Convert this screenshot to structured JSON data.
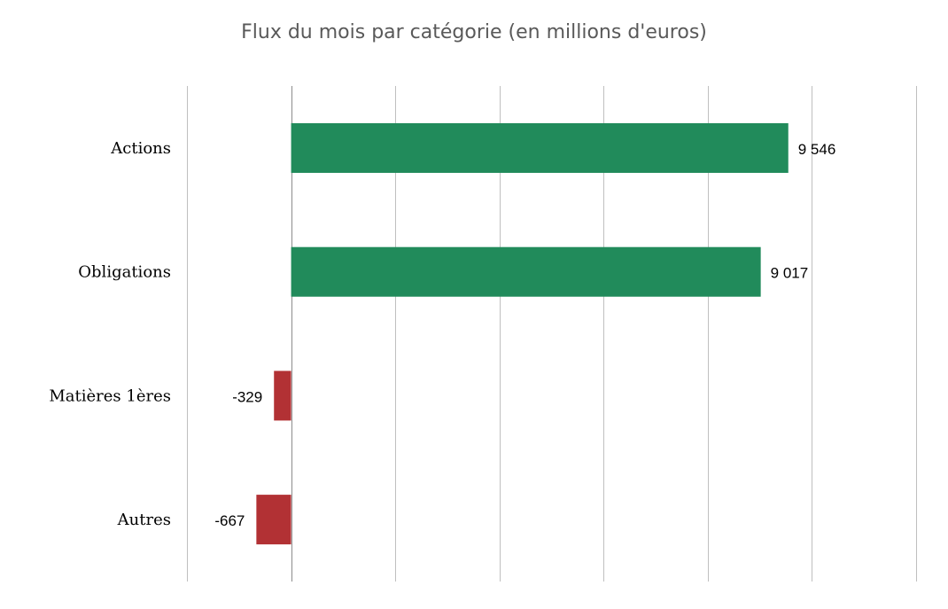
{
  "chart_data": {
    "type": "bar",
    "orientation": "horizontal",
    "title": "Flux du mois par catégorie (en millions d'euros)",
    "categories": [
      "Actions",
      "Obligations",
      "Matières 1ères",
      "Autres"
    ],
    "values": [
      9546,
      9017,
      -329,
      -667
    ],
    "value_labels": [
      "9 546",
      "9 017",
      "-329",
      "-667"
    ],
    "xlim": [
      -2000,
      12000
    ],
    "x_gridline_step": 2000,
    "x_tick_labels_visible": false,
    "grid": true,
    "legend": "none",
    "colors": {
      "positive": "#218B5B",
      "negative": "#B23134",
      "grid": "#BFBFBF",
      "zero_axis": "#8C8C8C",
      "title": "#595959"
    }
  }
}
